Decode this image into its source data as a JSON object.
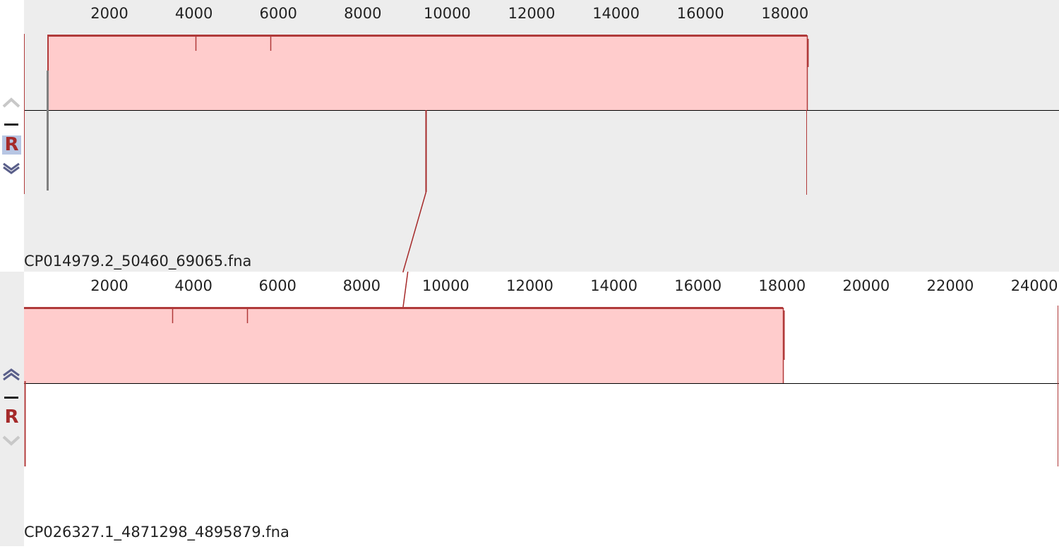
{
  "tracks": [
    {
      "name": "CP014979.2_50460_69065.fna",
      "ruler_ticks": [
        "2000",
        "4000",
        "6000",
        "8000",
        "10000",
        "12000",
        "14000",
        "16000",
        "18000"
      ],
      "controls": {
        "reverse_label": "R",
        "reverse_highlighted": true,
        "up_enabled": false,
        "down_enabled": true
      }
    },
    {
      "name": "CP026327.1_4871298_4895879.fna",
      "ruler_ticks": [
        "2000",
        "4000",
        "6000",
        "8000",
        "10000",
        "12000",
        "14000",
        "16000",
        "18000",
        "20000",
        "22000",
        "24000"
      ],
      "controls": {
        "reverse_label": "R",
        "reverse_highlighted": false,
        "up_enabled": true,
        "down_enabled": false
      }
    }
  ],
  "colors": {
    "block_fill": "#ffcccc",
    "block_outline": "#b03a3a",
    "connector": "#a52a2a",
    "selected_background": "#ededed",
    "ruler_text": "#222222"
  }
}
